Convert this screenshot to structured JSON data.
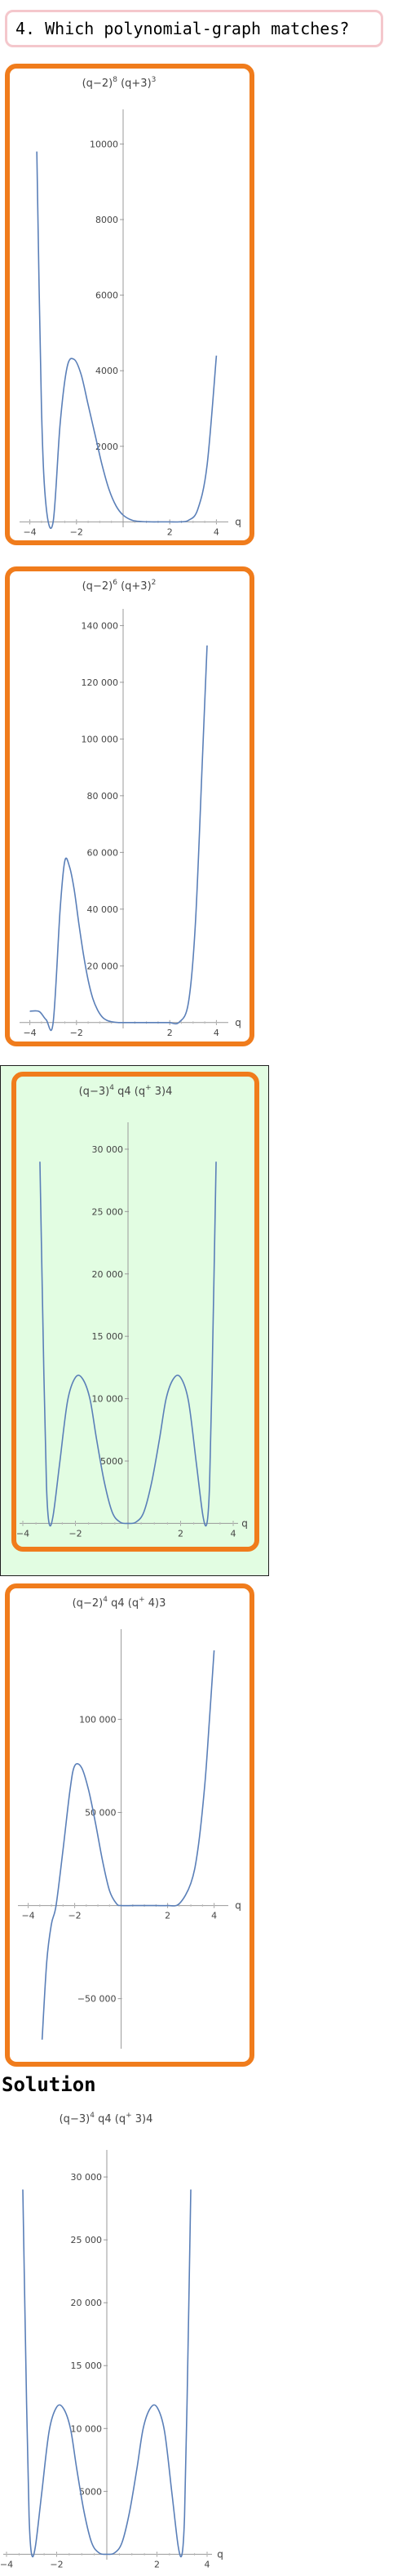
{
  "question": {
    "label": "4. Which polynomial-graph matches?"
  },
  "solution": {
    "label": "Solution"
  },
  "chart_data": [
    {
      "type": "line",
      "panel": "choice-1",
      "title": {
        "parts": [
          "(q",
          "−",
          "2)",
          "8",
          " (q",
          "+",
          "3)",
          "3"
        ]
      },
      "xlabel": "q",
      "x_ticks": [
        -4,
        -2,
        2,
        4
      ],
      "x_tick_labels": [
        "−4",
        "−2",
        "2",
        "4"
      ],
      "y_ticks": [
        2000,
        4000,
        6000,
        8000,
        10000
      ],
      "y_tick_labels": [
        "2000",
        "4000",
        "6000",
        "8000",
        "10000"
      ],
      "xlim": [
        -4.3,
        4.3
      ],
      "ylim": [
        -100,
        10700
      ],
      "x": [
        -3.7,
        -3.5,
        -3.3,
        -3.0,
        -2.7,
        -2.4,
        -2.1,
        -1.8,
        -1.5,
        -1.2,
        -0.9,
        -0.6,
        -0.3,
        0,
        0.4,
        0.8,
        1.2,
        1.6,
        2.0,
        2.4,
        2.8,
        3.2,
        3.6,
        4.0
      ],
      "y": [
        9800,
        3000,
        400,
        0,
        2600,
        4100,
        4300,
        3900,
        3100,
        2300,
        1500,
        850,
        420,
        180,
        40,
        8,
        0,
        0,
        0,
        0,
        40,
        330,
        1500,
        4400
      ]
    },
    {
      "type": "line",
      "panel": "choice-2",
      "title": {
        "parts": [
          "(q",
          "−",
          "2)",
          "6",
          " (q",
          "+",
          "3)",
          "2"
        ]
      },
      "xlabel": "q",
      "x_ticks": [
        -4,
        -2,
        2,
        4
      ],
      "x_tick_labels": [
        "−4",
        "−2",
        "2",
        "4"
      ],
      "y_ticks": [
        20000,
        40000,
        60000,
        80000,
        100000,
        120000,
        140000
      ],
      "y_tick_labels": [
        "20 000",
        "40 000",
        "60 000",
        "80 000",
        "100 000",
        "120 000",
        "140 000"
      ],
      "xlim": [
        -4.3,
        4.3
      ],
      "ylim": [
        -1500,
        143000
      ],
      "x": [
        -4.0,
        -3.6,
        -3.3,
        -3.0,
        -2.7,
        -2.5,
        -2.3,
        -2.1,
        -1.9,
        -1.7,
        -1.5,
        -1.3,
        -1.1,
        -0.9,
        -0.7,
        -0.5,
        -0.2,
        0.2,
        0.6,
        1.0,
        1.4,
        1.8,
        2.0,
        2.4,
        2.8,
        3.1,
        3.4,
        3.6
      ],
      "y": [
        4000,
        3900,
        1000,
        0,
        40000,
        57000,
        55000,
        47000,
        35000,
        24000,
        15000,
        8500,
        4500,
        2000,
        800,
        300,
        0,
        0,
        0,
        0,
        0,
        0,
        0,
        100,
        7000,
        35000,
        93000,
        133000
      ]
    },
    {
      "type": "line",
      "panel": "choice-3",
      "title": {
        "parts": [
          "(q",
          "−",
          "3)",
          "4",
          " q",
          "4",
          " (q",
          "+",
          "3)",
          "4"
        ]
      },
      "xlabel": "q",
      "x_ticks": [
        -4,
        -2,
        2,
        4
      ],
      "x_tick_labels": [
        "−4",
        "−2",
        "2",
        "4"
      ],
      "y_ticks": [
        5000,
        10000,
        15000,
        20000,
        25000,
        30000
      ],
      "y_tick_labels": [
        "5000",
        "10 000",
        "15 000",
        "20 000",
        "25 000",
        "30 000"
      ],
      "xlim": [
        -4.0,
        4.0
      ],
      "ylim": [
        -300,
        31500
      ],
      "x": [
        -3.35,
        -3.2,
        -3.1,
        -3.0,
        -2.85,
        -2.6,
        -2.3,
        -2.0,
        -1.73,
        -1.45,
        -1.2,
        -0.9,
        -0.6,
        -0.3,
        0,
        0.3,
        0.6,
        0.9,
        1.2,
        1.45,
        1.73,
        2.0,
        2.3,
        2.6,
        2.85,
        3.0,
        3.1,
        3.2,
        3.35
      ],
      "y": [
        29000,
        12000,
        3000,
        0,
        600,
        4800,
        9800,
        11700,
        11600,
        10000,
        6800,
        3300,
        900,
        100,
        0,
        100,
        900,
        3300,
        6800,
        10000,
        11600,
        11700,
        9800,
        4800,
        600,
        0,
        3000,
        12000,
        29000
      ]
    },
    {
      "type": "line",
      "panel": "choice-4",
      "title": {
        "parts": [
          "(q",
          "−",
          "2)",
          "4",
          " q",
          "4",
          " (q",
          "+",
          "4)",
          "3"
        ]
      },
      "xlabel": "q",
      "x_ticks": [
        -4,
        -2,
        2,
        4
      ],
      "x_tick_labels": [
        "−4",
        "−2",
        "2",
        "4"
      ],
      "y_ticks": [
        -50000,
        50000,
        100000
      ],
      "y_tick_labels": [
        "−50 000",
        "50 000",
        "100 000"
      ],
      "xlim": [
        -4.3,
        4.4
      ],
      "ylim": [
        -76000,
        144000
      ],
      "x": [
        -3.4,
        -3.2,
        -3.0,
        -2.8,
        -2.5,
        -2.2,
        -2.0,
        -1.7,
        -1.4,
        -1.1,
        -0.8,
        -0.5,
        -0.2,
        0,
        0.5,
        1.0,
        1.5,
        2.0,
        2.5,
        3.0,
        3.3,
        3.6,
        3.8,
        4.0
      ],
      "y": [
        -72000,
        -30000,
        -10000,
        0,
        30000,
        62000,
        75000,
        74000,
        62000,
        44000,
        24000,
        8000,
        1000,
        0,
        0,
        0,
        0,
        0,
        1000,
        12000,
        30000,
        65000,
        100000,
        137000
      ]
    },
    {
      "type": "line",
      "panel": "solution",
      "title": {
        "parts": [
          "(q",
          "−",
          "3)",
          "4",
          " q",
          "4",
          " (q",
          "+",
          "3)",
          "4"
        ]
      },
      "xlabel": "q",
      "x_ticks": [
        -4,
        -2,
        2,
        4
      ],
      "x_tick_labels": [
        "−4",
        "−2",
        "2",
        "4"
      ],
      "y_ticks": [
        5000,
        10000,
        15000,
        20000,
        25000,
        30000
      ],
      "y_tick_labels": [
        "5000",
        "10 000",
        "15 000",
        "20 000",
        "25 000",
        "30 000"
      ],
      "xlim": [
        -4.0,
        4.0
      ],
      "ylim": [
        -300,
        31500
      ],
      "x": [
        -3.35,
        -3.2,
        -3.1,
        -3.0,
        -2.85,
        -2.6,
        -2.3,
        -2.0,
        -1.73,
        -1.45,
        -1.2,
        -0.9,
        -0.6,
        -0.3,
        0,
        0.3,
        0.6,
        0.9,
        1.2,
        1.45,
        1.73,
        2.0,
        2.3,
        2.6,
        2.85,
        3.0,
        3.1,
        3.2,
        3.35
      ],
      "y": [
        29000,
        12000,
        3000,
        0,
        600,
        4800,
        9800,
        11700,
        11600,
        10000,
        6800,
        3300,
        900,
        100,
        0,
        100,
        900,
        3300,
        6800,
        10000,
        11600,
        11700,
        9800,
        4800,
        600,
        0,
        3000,
        12000,
        29000
      ]
    }
  ]
}
